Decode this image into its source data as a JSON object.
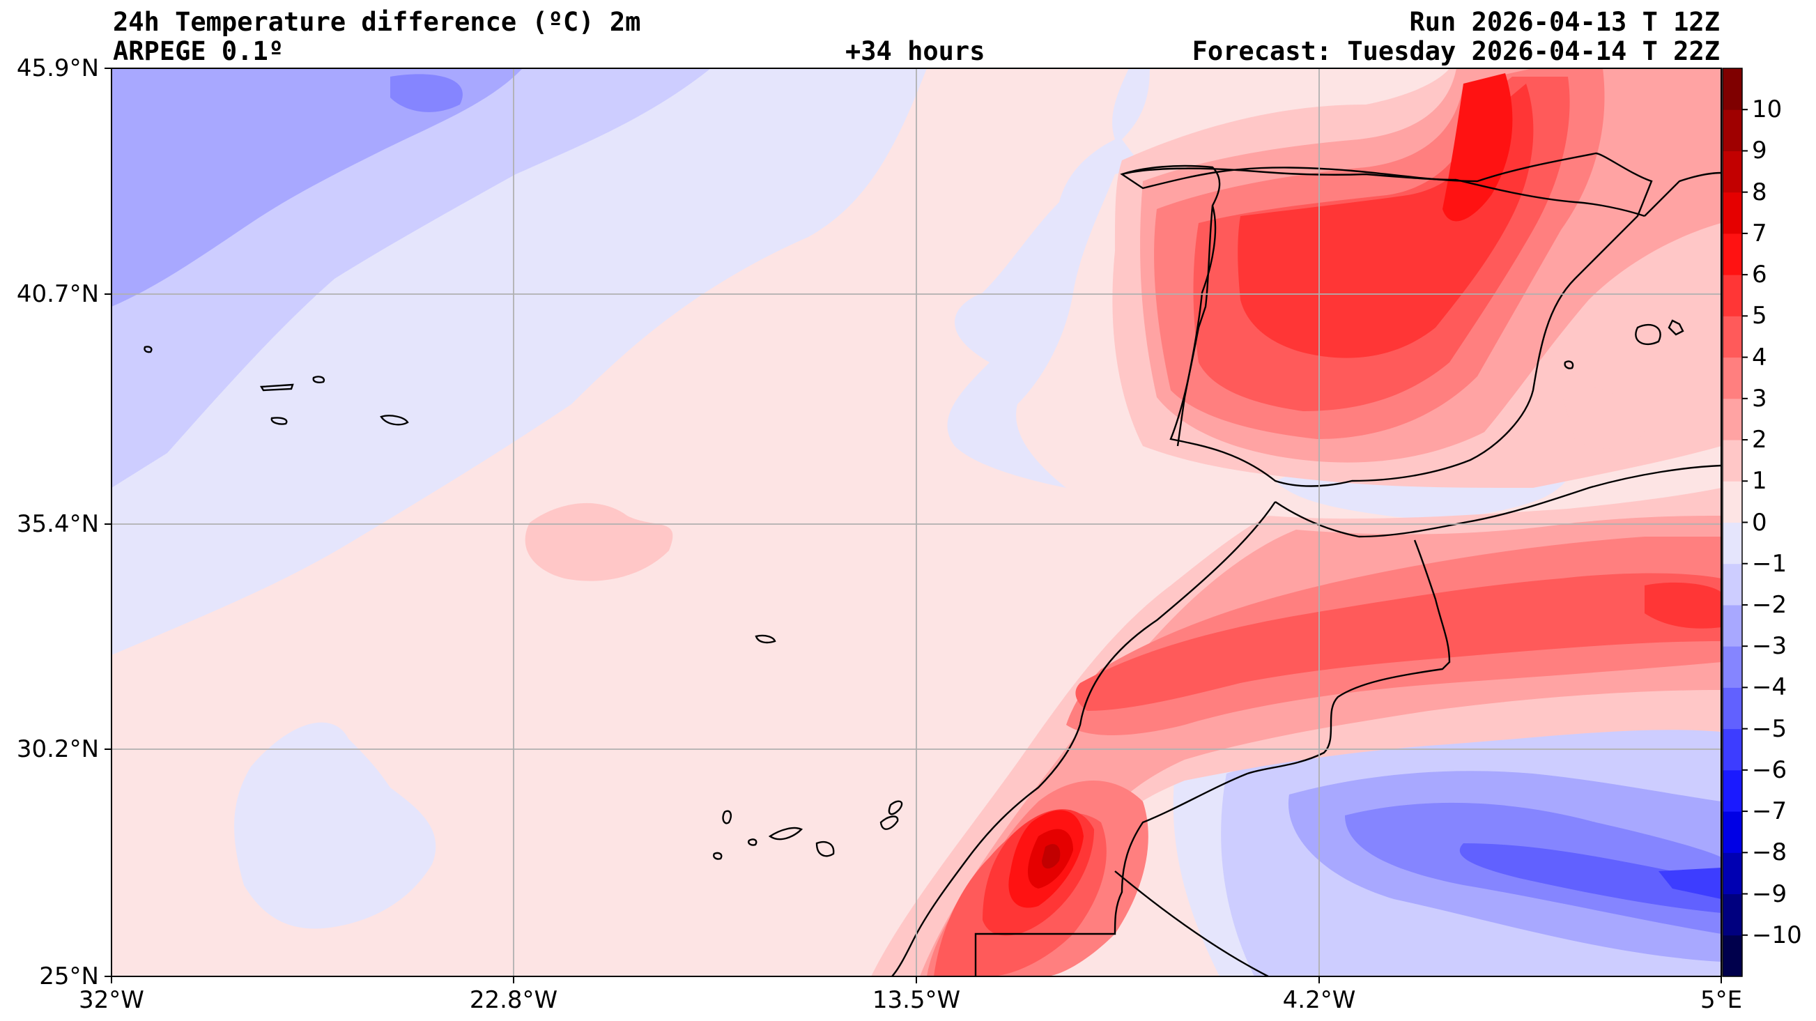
{
  "header": {
    "title": "24h Temperature difference (ºC) 2m",
    "model": "ARPEGE 0.1º",
    "lead": "+34 hours",
    "run": "Run 2026-04-13 T 12Z",
    "forecast": "Forecast: Tuesday 2026-04-14 T 22Z"
  },
  "map": {
    "lat_labels": [
      "45.9°N",
      "40.7°N",
      "35.4°N",
      "30.2°N",
      "25°N"
    ],
    "lon_labels": [
      "32°W",
      "22.8°W",
      "13.5°W",
      "4.2°W",
      "5°E"
    ],
    "gridline_color": "#b0b0b0",
    "coastline_color": "#000000"
  },
  "colorbar": {
    "levels": [
      -11,
      -10,
      -9,
      -8,
      -7,
      -6,
      -5,
      -4,
      -3,
      -2,
      -1,
      0,
      1,
      2,
      3,
      4,
      5,
      6,
      7,
      8,
      9,
      10,
      11
    ],
    "tick_labels": [
      "10",
      "9",
      "8",
      "7",
      "6",
      "5",
      "4",
      "3",
      "2",
      "1",
      "0",
      "−1",
      "−2",
      "−3",
      "−4",
      "−5",
      "−6",
      "−7",
      "−8",
      "−9",
      "−10"
    ],
    "colors": [
      "#00004c",
      "#00007f",
      "#0000b2",
      "#0000e5",
      "#1a1aff",
      "#3d3dff",
      "#6161ff",
      "#8585ff",
      "#a8a8ff",
      "#cdcdff",
      "#e5e5fc",
      "#fde4e4",
      "#ffc7c7",
      "#ffa3a3",
      "#ff7f7f",
      "#ff5a5a",
      "#ff3636",
      "#ff1212",
      "#e50000",
      "#c20000",
      "#9f0000",
      "#7f0000"
    ]
  }
}
